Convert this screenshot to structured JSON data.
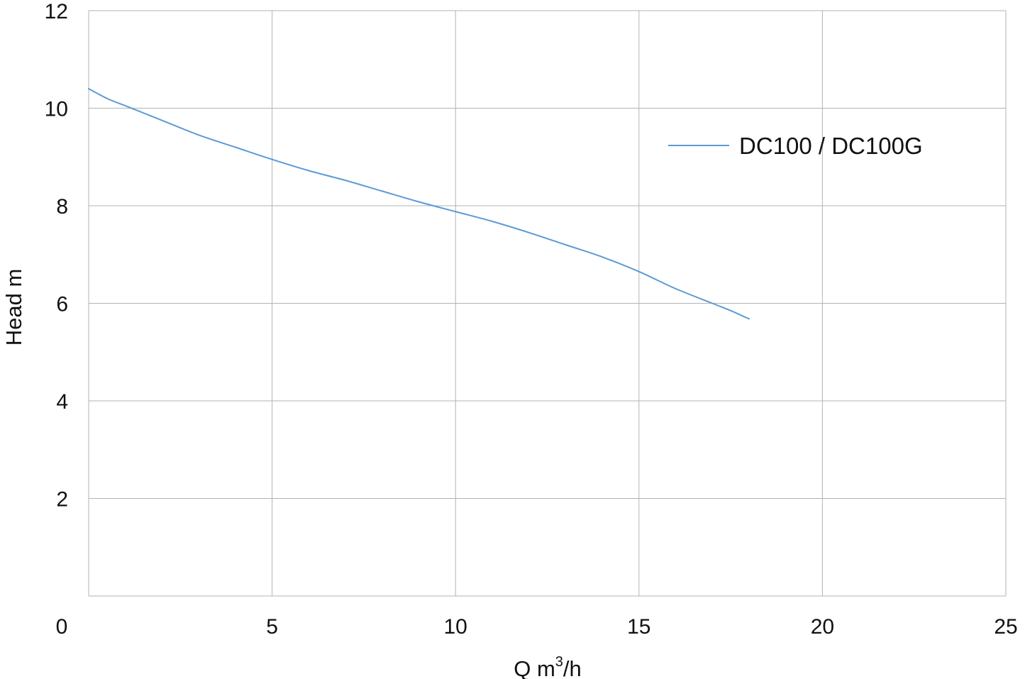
{
  "chart_data": {
    "type": "line",
    "title": "",
    "xlabel": {
      "main": "Q m",
      "superscript": "3",
      "suffix": "/h"
    },
    "ylabel": "Head m",
    "xlim": [
      0,
      25
    ],
    "ylim": [
      0,
      12
    ],
    "x_ticks": [
      0,
      5,
      10,
      15,
      20,
      25
    ],
    "y_ticks": [
      2,
      4,
      6,
      8,
      10,
      12
    ],
    "x_tick_labels": [
      "0",
      "5",
      "10",
      "15",
      "20",
      "25"
    ],
    "y_tick_labels": [
      "2",
      "4",
      "6",
      "8",
      "10",
      "12"
    ],
    "grid": true,
    "legend_position": "top-right",
    "series": [
      {
        "name": "DC100 / DC100G",
        "color": "#5b9bd5",
        "x": [
          0,
          0.5,
          1,
          1.5,
          2,
          3,
          4,
          5,
          6,
          7,
          8,
          9,
          10,
          11,
          12,
          13,
          14,
          15,
          16,
          17,
          17.5,
          18
        ],
        "y": [
          10.4,
          10.2,
          10.05,
          9.9,
          9.75,
          9.45,
          9.2,
          8.95,
          8.72,
          8.52,
          8.3,
          8.08,
          7.88,
          7.68,
          7.45,
          7.2,
          6.95,
          6.65,
          6.3,
          6.0,
          5.85,
          5.68
        ]
      }
    ]
  }
}
